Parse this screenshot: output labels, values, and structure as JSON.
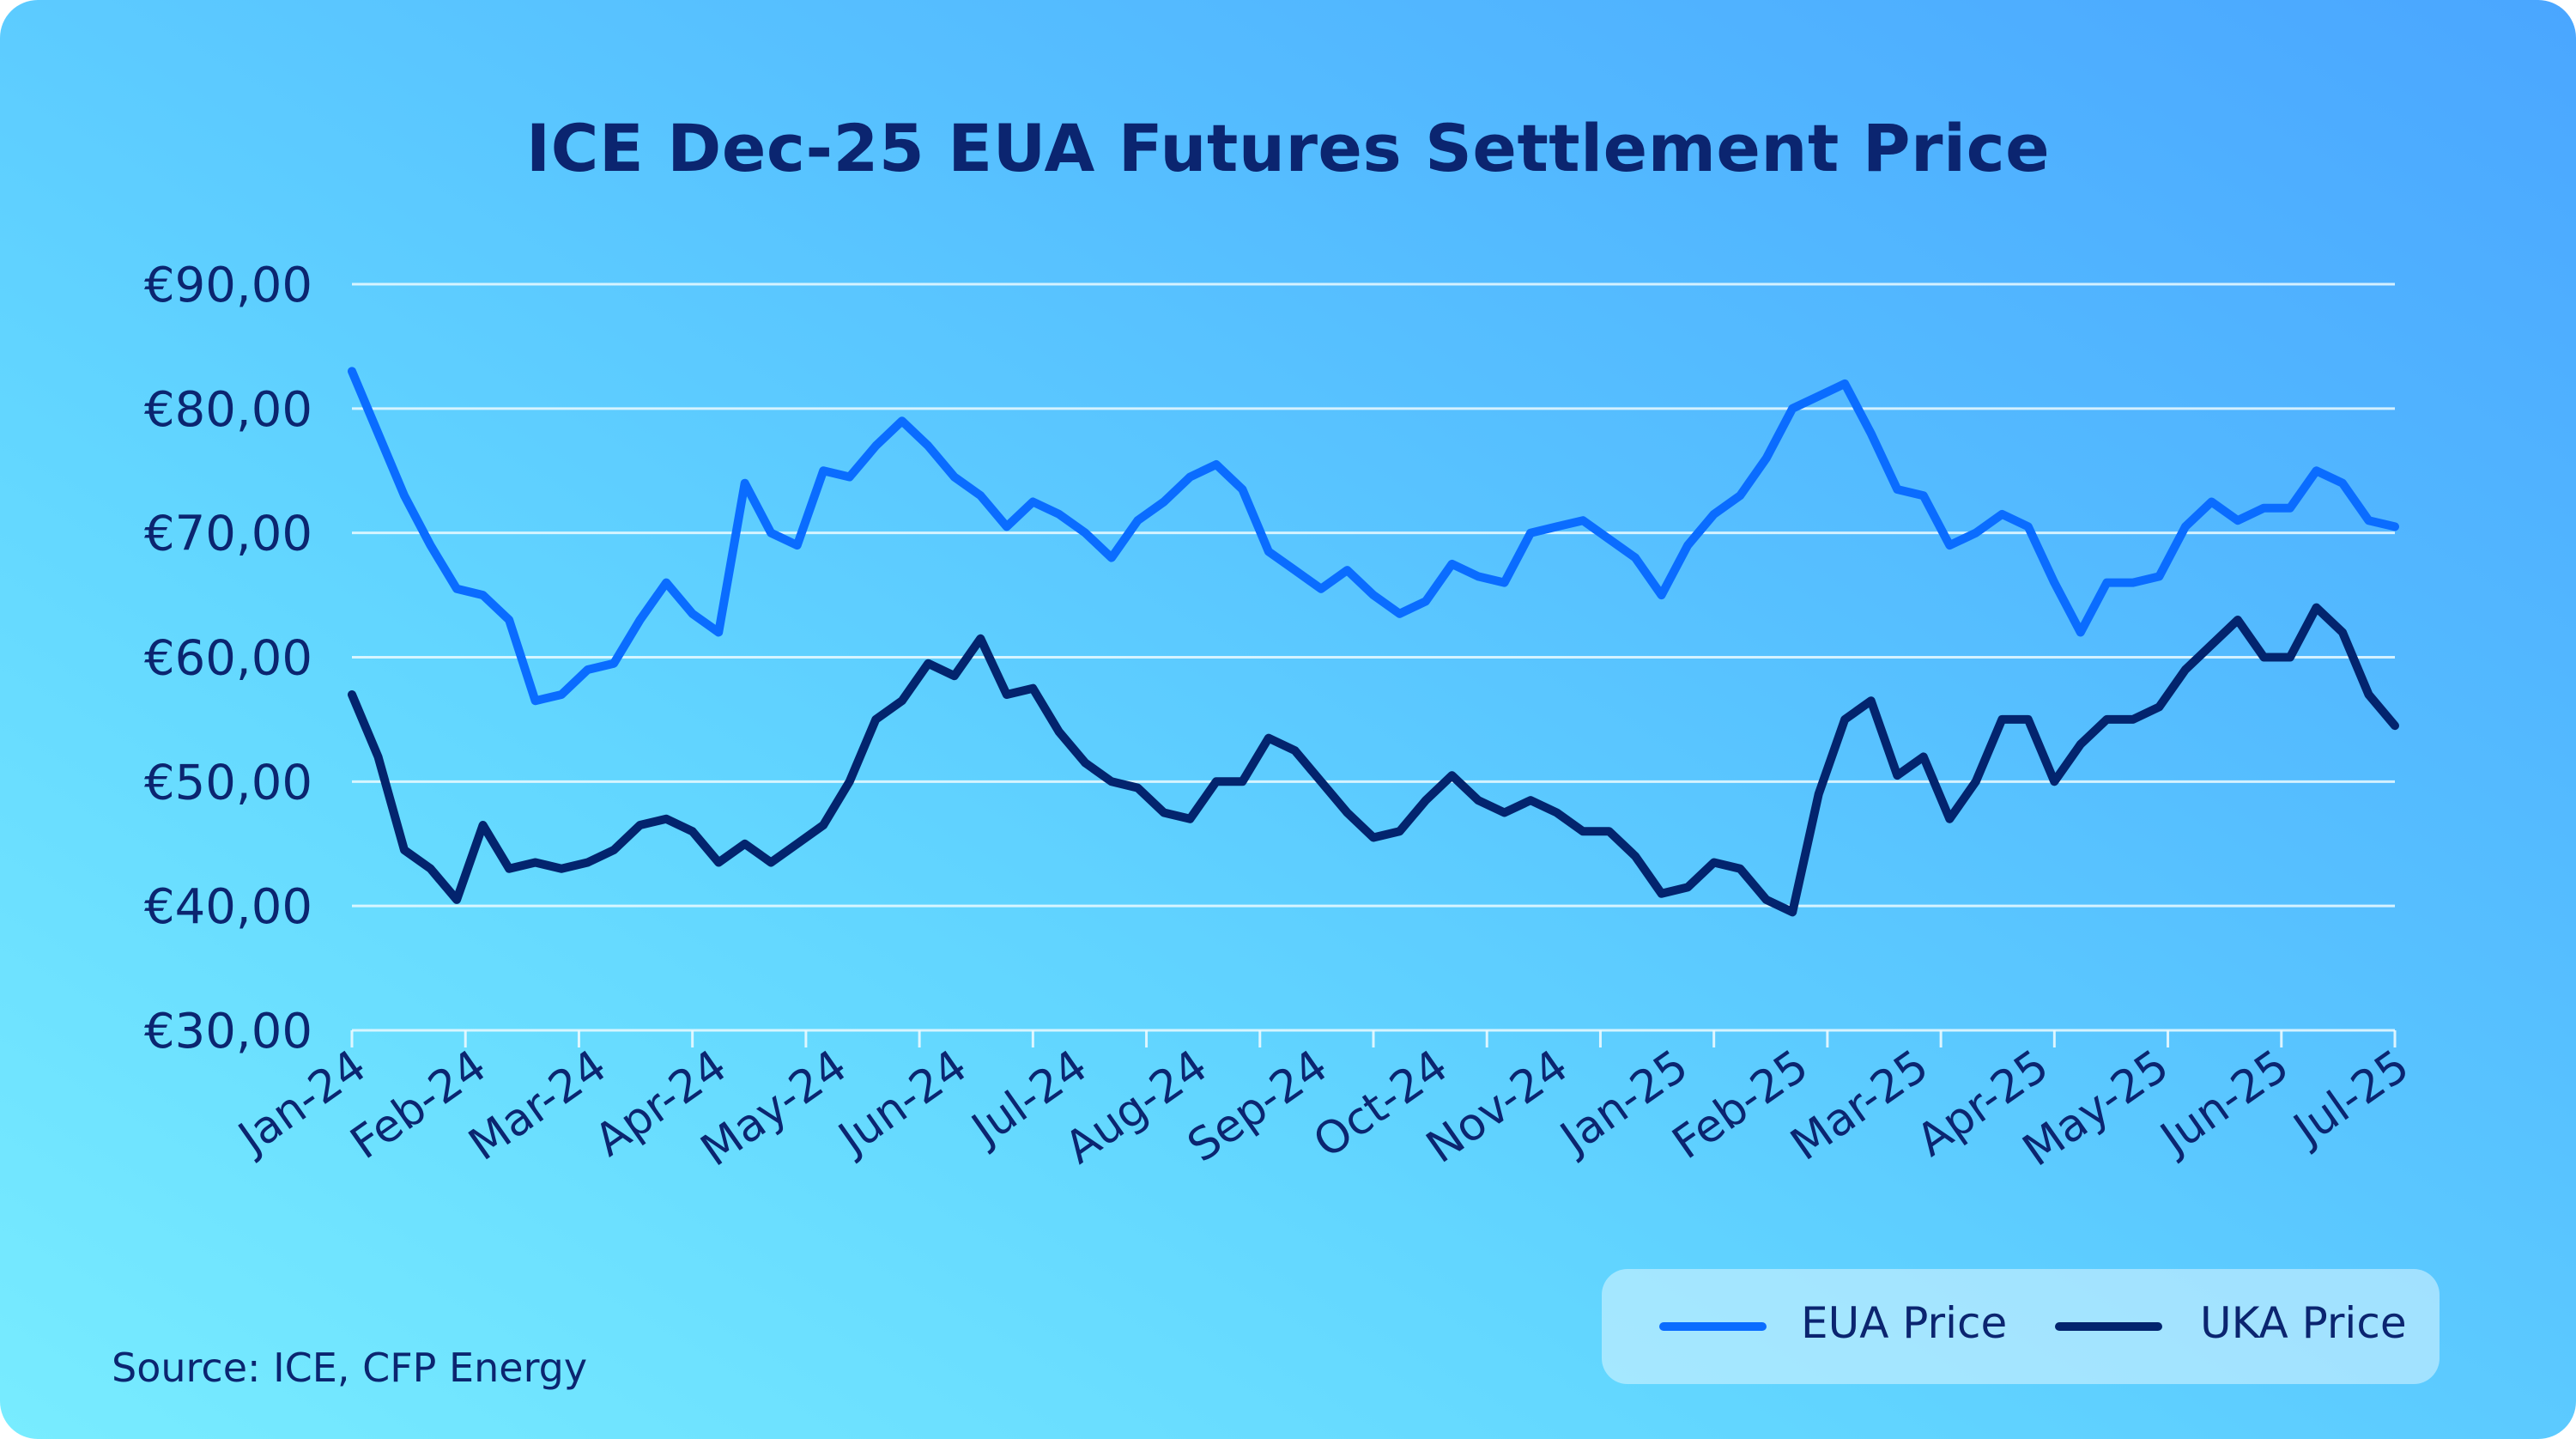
{
  "chart_data": {
    "type": "line",
    "title": "ICE Dec-25 EUA Futures Settlement Price",
    "source": "Source: ICE, CFP Energy",
    "ylim": [
      30,
      90
    ],
    "yticks": [
      30,
      40,
      50,
      60,
      70,
      80,
      90
    ],
    "ytick_labels": [
      "€30,00",
      "€40,00",
      "€50,00",
      "€60,00",
      "€70,00",
      "€80,00",
      "€90,00"
    ],
    "xlim": [
      "2024-01-02",
      "2025-07-01"
    ],
    "xtick_labels": [
      "Jan-24",
      "Feb-24",
      "Mar-24",
      "Apr-24",
      "May-24",
      "Jun-24",
      "Jul-24",
      "Aug-24",
      "Sep-24",
      "Oct-24",
      "Nov-24",
      "Jan-25",
      "Feb-25",
      "Mar-25",
      "Apr-25",
      "May-25",
      "Jun-25",
      "Jul-25"
    ],
    "grid": true,
    "legend": "bottom-right",
    "x": [
      "2024-01-02",
      "2024-01-09",
      "2024-01-16",
      "2024-01-23",
      "2024-01-30",
      "2024-02-06",
      "2024-02-13",
      "2024-02-20",
      "2024-02-27",
      "2024-03-05",
      "2024-03-12",
      "2024-03-19",
      "2024-03-26",
      "2024-04-02",
      "2024-04-09",
      "2024-04-16",
      "2024-04-23",
      "2024-04-30",
      "2024-05-07",
      "2024-05-14",
      "2024-05-21",
      "2024-05-28",
      "2024-06-04",
      "2024-06-11",
      "2024-06-18",
      "2024-06-25",
      "2024-07-02",
      "2024-07-09",
      "2024-07-16",
      "2024-07-23",
      "2024-07-30",
      "2024-08-06",
      "2024-08-13",
      "2024-08-20",
      "2024-08-27",
      "2024-09-03",
      "2024-09-10",
      "2024-09-17",
      "2024-09-24",
      "2024-10-01",
      "2024-10-08",
      "2024-10-15",
      "2024-10-22",
      "2024-10-29",
      "2024-11-05",
      "2024-11-12",
      "2024-11-19",
      "2024-11-26",
      "2024-12-03",
      "2024-12-10",
      "2024-12-17",
      "2024-12-24",
      "2024-12-31",
      "2025-01-07",
      "2025-01-14",
      "2025-01-21",
      "2025-01-28",
      "2025-02-04",
      "2025-02-11",
      "2025-02-18",
      "2025-02-25",
      "2025-03-04",
      "2025-03-11",
      "2025-03-18",
      "2025-03-25",
      "2025-04-01",
      "2025-04-08",
      "2025-04-15",
      "2025-04-22",
      "2025-04-29",
      "2025-05-06",
      "2025-05-13",
      "2025-05-20",
      "2025-05-27",
      "2025-06-03",
      "2025-06-10",
      "2025-06-17",
      "2025-06-24",
      "2025-07-01"
    ],
    "series": [
      {
        "name": "EUA Price",
        "color": "#0a6cff",
        "values": [
          83,
          78,
          73,
          69,
          65.5,
          65,
          63,
          56.5,
          57,
          59,
          59.5,
          63,
          66,
          63.5,
          62,
          74,
          70,
          69,
          75,
          74.5,
          77,
          79,
          77,
          74.5,
          73,
          70.5,
          72.5,
          71.5,
          70,
          68,
          71,
          72.5,
          74.5,
          75.5,
          73.5,
          68.5,
          67,
          65.5,
          67,
          65,
          63.5,
          64.5,
          67.5,
          66.5,
          66,
          70,
          70.5,
          71,
          69.5,
          68,
          65,
          69,
          71.5,
          73,
          76,
          80,
          81,
          82,
          78,
          73.5,
          73,
          69,
          70,
          71.5,
          70.5,
          66,
          62,
          66,
          66,
          66.5,
          70.5,
          72.5,
          71,
          72,
          72,
          75,
          74,
          71,
          70.5
        ]
      },
      {
        "name": "UKA Price",
        "color": "#03246e",
        "values": [
          57,
          52,
          44.5,
          43,
          40.5,
          46.5,
          43,
          43.5,
          43,
          43.5,
          44.5,
          46.5,
          47,
          46,
          43.5,
          45,
          43.5,
          45,
          46.5,
          50,
          55,
          56.5,
          59.5,
          58.5,
          61.5,
          57,
          57.5,
          54,
          51.5,
          50,
          49.5,
          47.5,
          47,
          50,
          50,
          53.5,
          52.5,
          50,
          47.5,
          45.5,
          46,
          48.5,
          50.5,
          48.5,
          47.5,
          48.5,
          47.5,
          46,
          46,
          44,
          41,
          41.5,
          43.5,
          43,
          40.5,
          39.5,
          49,
          55,
          56.5,
          50.5,
          52,
          47,
          50,
          55,
          55,
          50,
          53,
          55,
          55,
          56,
          59,
          61,
          63,
          60,
          60,
          64,
          62,
          57,
          54.5
        ]
      }
    ]
  }
}
